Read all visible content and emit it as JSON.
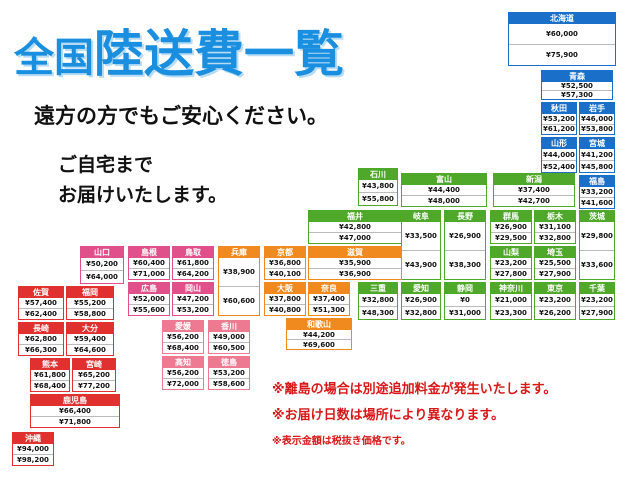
{
  "header": {
    "title_small": "全国",
    "title_large": "陸送費一覧",
    "lines": [
      "遠方の方でもご安心ください。",
      "ご自宅まで",
      "お届けいたします。"
    ]
  },
  "notes": [
    "※離島の場合は別途追加料金が発生いたします。",
    "※お届け日数は場所により異なります。",
    "※表示金額は税抜き価格です。"
  ],
  "prefectures": [
    {
      "name": "北海道",
      "prices": [
        "¥60,000",
        "¥75,900"
      ]
    },
    {
      "name": "青森",
      "prices": [
        "¥52,500",
        "¥57,300"
      ]
    },
    {
      "name": "秋田",
      "prices": [
        "¥53,200",
        "¥61,200"
      ]
    },
    {
      "name": "岩手",
      "prices": [
        "¥46,000",
        "¥53,800"
      ]
    },
    {
      "name": "山形",
      "prices": [
        "¥44,000",
        "¥52,400"
      ]
    },
    {
      "name": "宮城",
      "prices": [
        "¥41,200",
        "¥45,800"
      ]
    },
    {
      "name": "福島",
      "prices": [
        "¥33,200",
        "¥41,600"
      ]
    },
    {
      "name": "新潟",
      "prices": [
        "¥37,400",
        "¥42,700"
      ]
    },
    {
      "name": "富山",
      "prices": [
        "¥44,400",
        "¥48,000"
      ]
    },
    {
      "name": "石川",
      "prices": [
        "¥43,800",
        "¥55,800"
      ]
    },
    {
      "name": "福井",
      "prices": [
        "¥42,800",
        "¥47,000"
      ]
    },
    {
      "name": "岐阜",
      "prices": [
        "¥33,500",
        "¥43,900"
      ]
    },
    {
      "name": "長野",
      "prices": [
        "¥26,900",
        "¥38,300"
      ]
    },
    {
      "name": "群馬",
      "prices": [
        "¥26,900",
        "¥29,500"
      ]
    },
    {
      "name": "栃木",
      "prices": [
        "¥31,100",
        "¥32,800"
      ]
    },
    {
      "name": "茨城",
      "prices": [
        "¥29,800",
        "¥33,600"
      ]
    },
    {
      "name": "山梨",
      "prices": [
        "¥23,200",
        "¥27,800"
      ]
    },
    {
      "name": "埼玉",
      "prices": [
        "¥25,500",
        "¥27,900"
      ]
    },
    {
      "name": "千葉",
      "prices": [
        "¥23,200",
        "¥27,900"
      ]
    },
    {
      "name": "東京",
      "prices": [
        "¥23,200",
        "¥26,200"
      ]
    },
    {
      "name": "神奈川",
      "prices": [
        "¥21,000",
        "¥23,300"
      ]
    },
    {
      "name": "静岡",
      "prices": [
        "¥0",
        "¥31,000"
      ]
    },
    {
      "name": "愛知",
      "prices": [
        "¥26,900",
        "¥32,800"
      ]
    },
    {
      "name": "三重",
      "prices": [
        "¥32,800",
        "¥48,300"
      ]
    },
    {
      "name": "滋賀",
      "prices": [
        "¥35,900",
        "¥36,900"
      ]
    },
    {
      "name": "京都",
      "prices": [
        "¥36,800",
        "¥40,100"
      ]
    },
    {
      "name": "大阪",
      "prices": [
        "¥37,800",
        "¥40,800"
      ]
    },
    {
      "name": "奈良",
      "prices": [
        "¥37,400",
        "¥51,300"
      ]
    },
    {
      "name": "和歌山",
      "prices": [
        "¥44,200",
        "¥69,600"
      ]
    },
    {
      "name": "兵庫",
      "prices": [
        "¥38,900",
        "¥60,600"
      ]
    },
    {
      "name": "鳥取",
      "prices": [
        "¥61,800",
        "¥64,200"
      ]
    },
    {
      "name": "島根",
      "prices": [
        "¥60,400",
        "¥71,000"
      ]
    },
    {
      "name": "山口",
      "prices": [
        "¥50,200",
        "¥64,000"
      ]
    },
    {
      "name": "岡山",
      "prices": [
        "¥47,200",
        "¥53,200"
      ]
    },
    {
      "name": "広島",
      "prices": [
        "¥52,000",
        "¥55,600"
      ]
    },
    {
      "name": "香川",
      "prices": [
        "¥49,000",
        "¥60,500"
      ]
    },
    {
      "name": "愛媛",
      "prices": [
        "¥56,200",
        "¥68,400"
      ]
    },
    {
      "name": "徳島",
      "prices": [
        "¥53,200",
        "¥58,600"
      ]
    },
    {
      "name": "高知",
      "prices": [
        "¥56,200",
        "¥72,000"
      ]
    },
    {
      "name": "佐賀",
      "prices": [
        "¥57,400",
        "¥62,400"
      ]
    },
    {
      "name": "福岡",
      "prices": [
        "¥55,200",
        "¥58,800"
      ]
    },
    {
      "name": "長崎",
      "prices": [
        "¥62,800",
        "¥66,300"
      ]
    },
    {
      "name": "大分",
      "prices": [
        "¥59,400",
        "¥64,600"
      ]
    },
    {
      "name": "熊本",
      "prices": [
        "¥61,800",
        "¥68,400"
      ]
    },
    {
      "name": "宮崎",
      "prices": [
        "¥65,200",
        "¥77,200"
      ]
    },
    {
      "name": "鹿児島",
      "prices": [
        "¥66,400",
        "¥71,800"
      ]
    },
    {
      "name": "沖縄",
      "prices": [
        "¥94,000",
        "¥98,200"
      ]
    }
  ]
}
